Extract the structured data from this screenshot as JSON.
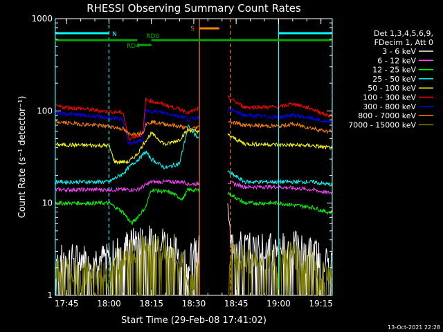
{
  "chart_data": {
    "type": "line",
    "title": "RHESSI Observing Summary Count Rates",
    "xlabel": "Start Time (29-Feb-08 17:41:02)",
    "ylabel": "Count Rate (s⁻¹ detector⁻¹)",
    "yscale": "log",
    "ylim": [
      1,
      1000
    ],
    "xlim": [
      "17:41:02",
      "19:19:00"
    ],
    "yticks": [
      {
        "label": "1000",
        "value": 1000
      },
      {
        "label": "100",
        "value": 100
      },
      {
        "label": "10",
        "value": 10
      },
      {
        "label": "1",
        "value": 1
      }
    ],
    "xticks": [
      {
        "label": "17:45",
        "value": "17:45"
      },
      {
        "label": "18:00",
        "value": "18:00"
      },
      {
        "label": "18:15",
        "value": "18:15"
      },
      {
        "label": "18:30",
        "value": "18:30"
      },
      {
        "label": "18:45",
        "value": "18:45"
      },
      {
        "label": "19:00",
        "value": "19:00"
      },
      {
        "label": "19:15",
        "value": "19:15"
      }
    ],
    "legend_header": [
      "Det 1,3,4,5,6,9,",
      "FDecim 1, Att 0"
    ],
    "legend_position": "right",
    "series": [
      {
        "name": "3 - 6 keV",
        "color": "#ffffff",
        "points": [
          [
            "17:41",
            "2.6"
          ],
          [
            "18:00",
            "2.6"
          ],
          [
            "18:05",
            "3.6"
          ],
          [
            "18:12",
            "4.2"
          ],
          [
            "18:20",
            "4.0"
          ],
          [
            "18:27",
            "2.6"
          ],
          [
            "18:28",
            "2.4"
          ],
          [
            "18:42",
            "10"
          ],
          [
            "18:43",
            "3.8"
          ],
          [
            "18:50",
            "3.4"
          ],
          [
            "19:00",
            "3.4"
          ],
          [
            "19:05",
            "3.6"
          ],
          [
            "19:12",
            "3.1"
          ],
          [
            "19:17",
            "2.4"
          ]
        ]
      },
      {
        "name": "6 - 12 keV",
        "color": "#ff44ff",
        "points": [
          [
            "17:41",
            "14"
          ],
          [
            "18:00",
            "14"
          ],
          [
            "18:07",
            "14"
          ],
          [
            "18:10",
            "14"
          ],
          [
            "18:15",
            "17"
          ],
          [
            "18:20",
            "17"
          ],
          [
            "18:27",
            "17"
          ],
          [
            "18:28",
            "16"
          ],
          [
            "18:42",
            "17"
          ],
          [
            "18:48",
            "15"
          ],
          [
            "19:00",
            "15"
          ],
          [
            "19:12",
            "14"
          ],
          [
            "19:17",
            "13"
          ]
        ]
      },
      {
        "name": "12 - 25 keV",
        "color": "#00ff00",
        "points": [
          [
            "17:41",
            "10"
          ],
          [
            "18:00",
            "10"
          ],
          [
            "18:05",
            "8"
          ],
          [
            "18:08",
            "6"
          ],
          [
            "18:10",
            "7"
          ],
          [
            "18:13",
            "9"
          ],
          [
            "18:15",
            "14"
          ],
          [
            "18:22",
            "13"
          ],
          [
            "18:26",
            "11"
          ],
          [
            "18:28",
            "14"
          ],
          [
            "18:42",
            "13"
          ],
          [
            "18:48",
            "10"
          ],
          [
            "19:00",
            "10"
          ],
          [
            "19:12",
            "9"
          ],
          [
            "19:17",
            "8"
          ]
        ]
      },
      {
        "name": "25 - 50 keV",
        "color": "#00ffff",
        "points": [
          [
            "17:41",
            "17"
          ],
          [
            "18:00",
            "17"
          ],
          [
            "18:05",
            "21"
          ],
          [
            "18:08",
            "26"
          ],
          [
            "18:11",
            "31"
          ],
          [
            "18:13",
            "36"
          ],
          [
            "18:15",
            "30"
          ],
          [
            "18:20",
            "24"
          ],
          [
            "18:25",
            "27"
          ],
          [
            "18:27",
            "50"
          ],
          [
            "18:28",
            "68"
          ],
          [
            "18:42",
            "22"
          ],
          [
            "18:48",
            "17"
          ],
          [
            "19:00",
            "17"
          ],
          [
            "19:12",
            "17"
          ],
          [
            "19:17",
            "16"
          ]
        ]
      },
      {
        "name": "50 - 100 keV",
        "color": "#ffff00",
        "points": [
          [
            "17:41",
            "43"
          ],
          [
            "18:00",
            "42"
          ],
          [
            "18:02",
            "28"
          ],
          [
            "18:07",
            "28"
          ],
          [
            "18:10",
            "34"
          ],
          [
            "18:13",
            "48"
          ],
          [
            "18:15",
            "57"
          ],
          [
            "18:20",
            "43"
          ],
          [
            "18:25",
            "49"
          ],
          [
            "18:27",
            "58"
          ],
          [
            "18:28",
            "62"
          ],
          [
            "18:42",
            "55"
          ],
          [
            "18:48",
            "44"
          ],
          [
            "19:00",
            "43"
          ],
          [
            "19:12",
            "42"
          ],
          [
            "19:17",
            "40"
          ]
        ]
      },
      {
        "name": "100 - 300 keV",
        "color": "#ff0000",
        "points": [
          [
            "17:41",
            "112"
          ],
          [
            "17:50",
            "106"
          ],
          [
            "18:00",
            "98"
          ],
          [
            "18:05",
            "96"
          ],
          [
            "18:07",
            "50"
          ],
          [
            "18:12",
            "56"
          ],
          [
            "18:13",
            "132"
          ],
          [
            "18:15",
            "128"
          ],
          [
            "18:20",
            "116"
          ],
          [
            "18:27",
            "100"
          ],
          [
            "18:28",
            "95"
          ],
          [
            "18:42",
            "140"
          ],
          [
            "18:48",
            "110"
          ],
          [
            "19:00",
            "110"
          ],
          [
            "19:05",
            "120"
          ],
          [
            "19:12",
            "105"
          ],
          [
            "19:17",
            "90"
          ]
        ]
      },
      {
        "name": "300 - 800 keV",
        "color": "#0000ff",
        "points": [
          [
            "17:41",
            "96"
          ],
          [
            "17:50",
            "90"
          ],
          [
            "18:00",
            "84"
          ],
          [
            "18:05",
            "80"
          ],
          [
            "18:07",
            "44"
          ],
          [
            "18:12",
            "48"
          ],
          [
            "18:13",
            "98"
          ],
          [
            "18:15",
            "100"
          ],
          [
            "18:20",
            "95"
          ],
          [
            "18:27",
            "85"
          ],
          [
            "18:28",
            "80"
          ],
          [
            "18:42",
            "105"
          ],
          [
            "18:48",
            "90"
          ],
          [
            "19:00",
            "85"
          ],
          [
            "19:05",
            "90"
          ],
          [
            "19:12",
            "83"
          ],
          [
            "19:17",
            "75"
          ]
        ]
      },
      {
        "name": "800 - 7000 keV",
        "color": "#ff8000",
        "points": [
          [
            "17:41",
            "76"
          ],
          [
            "17:50",
            "72"
          ],
          [
            "18:00",
            "68"
          ],
          [
            "18:05",
            "64"
          ],
          [
            "18:07",
            "56"
          ],
          [
            "18:12",
            "58"
          ],
          [
            "18:13",
            "72"
          ],
          [
            "18:15",
            "76"
          ],
          [
            "18:20",
            "72"
          ],
          [
            "18:27",
            "66"
          ],
          [
            "18:28",
            "63"
          ],
          [
            "18:42",
            "78"
          ],
          [
            "18:48",
            "70"
          ],
          [
            "19:00",
            "68"
          ],
          [
            "19:05",
            "72"
          ],
          [
            "19:12",
            "65"
          ],
          [
            "19:17",
            "60"
          ]
        ]
      },
      {
        "name": "7000 - 15000 keV",
        "color": "#808000",
        "points": [
          [
            "17:41",
            "1.8"
          ],
          [
            "18:00",
            "1.8"
          ],
          [
            "18:05",
            "2.6"
          ],
          [
            "18:12",
            "3.4"
          ],
          [
            "18:20",
            "3.2"
          ],
          [
            "18:27",
            "2.0"
          ],
          [
            "18:28",
            "1.4"
          ],
          [
            "18:42",
            "2.8"
          ],
          [
            "18:50",
            "2.4"
          ],
          [
            "19:00",
            "2.5"
          ],
          [
            "19:05",
            "2.8"
          ],
          [
            "19:12",
            "2.2"
          ],
          [
            "19:17",
            "1.6"
          ]
        ]
      }
    ],
    "annotations": [
      {
        "label": "N",
        "color": "#00ffff",
        "segments": [
          [
            "17:41",
            "18:00"
          ],
          [
            "19:00",
            "19:19"
          ]
        ],
        "level": "upper"
      },
      {
        "label": "S",
        "color": "#ff8000",
        "segments": [
          [
            "18:32",
            "18:39"
          ]
        ],
        "level": "top"
      },
      {
        "label": "RD4",
        "color": "#00aa00",
        "segments": [
          [
            "18:10",
            "18:15"
          ]
        ],
        "level": "lower"
      },
      {
        "label": "RD0",
        "color": "#00aa00",
        "segments": [
          [
            "17:41",
            "18:10"
          ],
          [
            "18:15",
            "19:19"
          ]
        ],
        "level": "middle"
      }
    ],
    "vertical_markers": [
      {
        "color": "#00ffff",
        "style": "solid",
        "x": "17:41"
      },
      {
        "color": "#00ffff",
        "style": "dashed",
        "x": "18:00"
      },
      {
        "color": "#00ffff",
        "style": "solid",
        "x": "19:00"
      },
      {
        "color": "#00ffff",
        "style": "dashed",
        "x": "19:19"
      },
      {
        "color": "#ff8000",
        "style": "solid",
        "x": "18:32"
      },
      {
        "color": "#ff8000",
        "style": "dashed",
        "x": "18:43"
      }
    ],
    "gap": [
      "18:32",
      "18:42"
    ]
  },
  "footer_date": "13-Oct-2021 22:28"
}
